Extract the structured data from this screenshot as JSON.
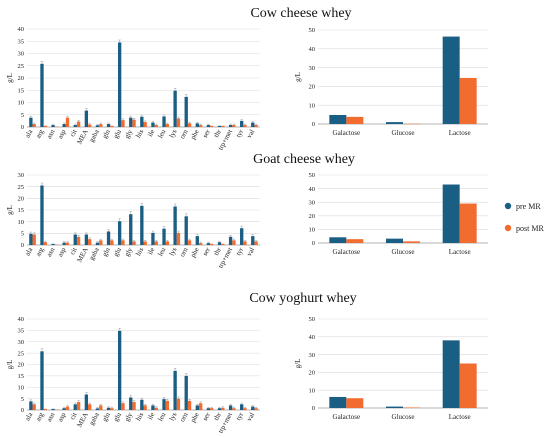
{
  "colors": {
    "pre": "#1a5e84",
    "post": "#f26b2f"
  },
  "legend": {
    "items": [
      {
        "name": "pre MR",
        "color": "#1a5e84"
      },
      {
        "name": "post MR",
        "color": "#f26b2f"
      }
    ]
  },
  "chart_data": [
    {
      "id": "cow-cheese-aa",
      "type": "bar",
      "title": "Cow cheese whey",
      "ylabel": "g/L",
      "ylim": [
        0,
        40
      ],
      "yticks": [
        0,
        5,
        10,
        15,
        20,
        25,
        30,
        35,
        40
      ],
      "categories": [
        "ala",
        "arg",
        "asn",
        "asp",
        "cit",
        "MEA",
        "gaba",
        "gln",
        "glu",
        "gly",
        "his",
        "ile",
        "leu",
        "lys",
        "orn",
        "phe",
        "ser",
        "thr",
        "trp+met",
        "tyr",
        "val"
      ],
      "series": [
        {
          "name": "pre MR",
          "values": [
            3.8,
            25.8,
            0.8,
            1.2,
            0.8,
            6.7,
            0.7,
            1.2,
            34.5,
            3.8,
            4.2,
            1.8,
            4.3,
            14.8,
            12.3,
            1.5,
            0.8,
            0.5,
            0.8,
            2.5,
            1.8
          ]
        },
        {
          "name": "post MR",
          "values": [
            1.2,
            0.5,
            0.2,
            3.8,
            2.2,
            1.0,
            1.2,
            0.5,
            2.8,
            3.0,
            2.0,
            0.8,
            1.2,
            3.5,
            1.5,
            0.8,
            0.5,
            0.5,
            0.8,
            0.8,
            0.8
          ]
        }
      ]
    },
    {
      "id": "cow-cheese-sugar",
      "type": "bar",
      "title": "",
      "ylabel": "g/L",
      "ylim": [
        0,
        50
      ],
      "yticks": [
        0,
        10,
        20,
        30,
        40,
        50
      ],
      "categories": [
        "Galactose",
        "Glucose",
        "Lactose"
      ],
      "series": [
        {
          "name": "pre MR",
          "values": [
            4.8,
            1.0,
            46.5
          ]
        },
        {
          "name": "post MR",
          "values": [
            3.8,
            0.1,
            24.5
          ]
        }
      ]
    },
    {
      "id": "goat-cheese-aa",
      "type": "bar",
      "title": "Goat cheese whey",
      "ylabel": "g/L",
      "ylim": [
        0,
        30
      ],
      "yticks": [
        0,
        5,
        10,
        15,
        20,
        25,
        30
      ],
      "categories": [
        "ala",
        "arg",
        "asn",
        "asp",
        "cit",
        "MEA",
        "gaba",
        "gln",
        "glu",
        "gly",
        "his",
        "ile",
        "leu",
        "lys",
        "orn",
        "phe",
        "ser",
        "thr",
        "trp+met",
        "tyr",
        "val"
      ],
      "series": [
        {
          "name": "pre MR",
          "values": [
            4.8,
            25.5,
            0.5,
            1.0,
            4.5,
            4.5,
            1.0,
            5.8,
            10.2,
            13.2,
            16.8,
            5.2,
            7.0,
            16.5,
            12.3,
            3.8,
            0.8,
            1.2,
            3.5,
            7.2,
            3.8
          ]
        },
        {
          "name": "post MR",
          "values": [
            4.5,
            1.2,
            0.2,
            1.0,
            3.5,
            2.5,
            2.0,
            2.0,
            2.0,
            1.5,
            1.5,
            1.5,
            1.5,
            5.2,
            2.0,
            0.8,
            0.5,
            0.5,
            2.0,
            1.5,
            1.5
          ]
        }
      ]
    },
    {
      "id": "goat-cheese-sugar",
      "type": "bar",
      "title": "",
      "ylabel": "",
      "ylim": [
        0,
        50
      ],
      "yticks": [
        0,
        10,
        20,
        30,
        40,
        50
      ],
      "categories": [
        "Galactose",
        "Glucose",
        "Lactose"
      ],
      "series": [
        {
          "name": "pre MR",
          "values": [
            4.2,
            3.2,
            43.0
          ]
        },
        {
          "name": "post MR",
          "values": [
            2.8,
            1.2,
            29.0
          ]
        }
      ]
    },
    {
      "id": "cow-yoghurt-aa",
      "type": "bar",
      "title": "Cow yoghurt whey",
      "ylabel": "g/L",
      "ylim": [
        0,
        40
      ],
      "yticks": [
        0,
        5,
        10,
        15,
        20,
        25,
        30,
        35,
        40
      ],
      "categories": [
        "ala",
        "arg",
        "asn",
        "asp",
        "cit",
        "MEA",
        "gaba",
        "gln",
        "glu",
        "gly",
        "his",
        "ile",
        "leu",
        "lys",
        "orn",
        "phe",
        "ser",
        "thr",
        "trp+met",
        "tyr",
        "val"
      ],
      "series": [
        {
          "name": "pre MR",
          "values": [
            3.8,
            25.8,
            0.5,
            0.8,
            2.5,
            6.8,
            0.7,
            1.0,
            34.8,
            5.5,
            4.5,
            2.0,
            4.8,
            17.2,
            15.0,
            2.0,
            0.8,
            0.8,
            2.0,
            2.5,
            1.5
          ]
        },
        {
          "name": "post MR",
          "values": [
            2.5,
            0.5,
            0.2,
            1.5,
            3.5,
            2.5,
            2.0,
            0.8,
            3.0,
            3.5,
            2.0,
            1.0,
            4.0,
            5.0,
            4.0,
            3.0,
            0.8,
            1.0,
            0.8,
            0.8,
            0.8
          ]
        }
      ]
    },
    {
      "id": "cow-yoghurt-sugar",
      "type": "bar",
      "title": "",
      "ylabel": "g/L",
      "ylim": [
        0,
        50
      ],
      "yticks": [
        0,
        10,
        20,
        30,
        40,
        50
      ],
      "categories": [
        "Galactose",
        "Glucose",
        "Lactose"
      ],
      "series": [
        {
          "name": "pre MR",
          "values": [
            6.2,
            0.8,
            38.0
          ]
        },
        {
          "name": "post MR",
          "values": [
            5.5,
            0.3,
            25.0
          ]
        }
      ]
    }
  ]
}
